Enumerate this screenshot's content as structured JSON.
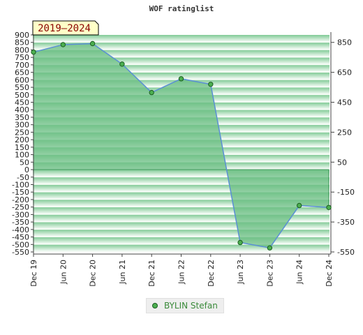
{
  "chart_data": {
    "type": "area",
    "title": "WOF ratinglist",
    "period_badge": "2019–2024",
    "x": [
      "Dec 19",
      "Jun 20",
      "Dec 20",
      "Jun 21",
      "Dec 21",
      "Jun 22",
      "Dec 22",
      "Jun 23",
      "Dec 23",
      "Jun 24",
      "Dec 24"
    ],
    "series": [
      {
        "name": "BYLIN Stefan",
        "values": [
          785,
          835,
          842,
          705,
          515,
          607,
          570,
          -487,
          -523,
          -240,
          -253
        ]
      }
    ],
    "y_left": {
      "min": -550,
      "max": 900,
      "ticks": [
        900,
        850,
        800,
        750,
        700,
        650,
        600,
        550,
        500,
        450,
        400,
        350,
        300,
        250,
        200,
        150,
        100,
        50,
        0,
        -50,
        -100,
        -150,
        -200,
        -250,
        -300,
        -350,
        -400,
        -450,
        -500,
        -550
      ]
    },
    "y_right": {
      "ticks": [
        850,
        650,
        450,
        250,
        50,
        -150,
        -350,
        -550
      ]
    },
    "grid": "horizontal gradient bands",
    "legend_position": "bottom-center",
    "colors": {
      "fill": "#6cbf84",
      "line": "#5b8fd6",
      "marker": "#4caf50",
      "marker_stroke": "#1b5e20",
      "band_dark": "#8ccf9f",
      "band_light": "#f4fbf5",
      "badge_bg": "#ffffc8",
      "badge_text": "#8b0000"
    }
  }
}
